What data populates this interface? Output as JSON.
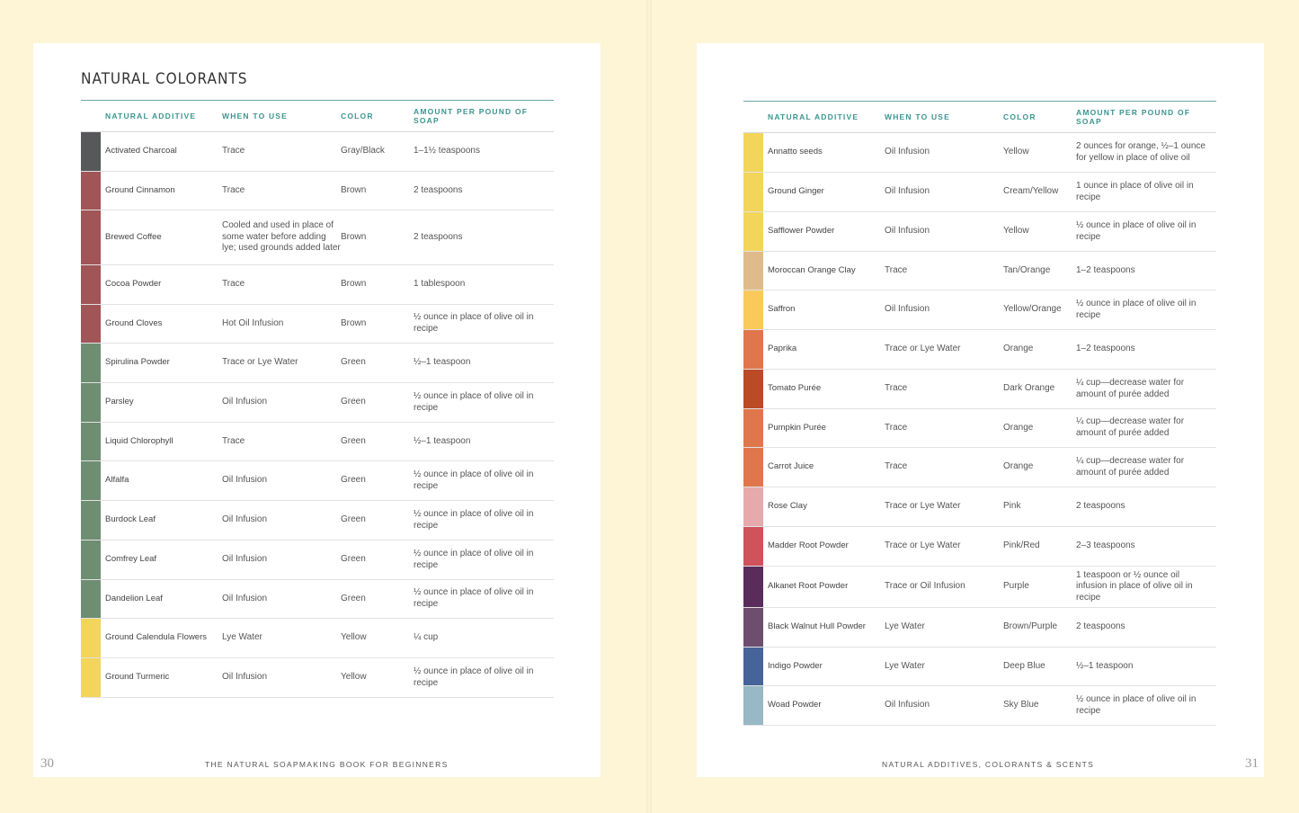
{
  "left_page": {
    "title": "NATURAL COLORANTS",
    "headers": [
      "Natural Additive",
      "When to Use",
      "Color",
      "Amount per Pound of Soap"
    ],
    "rows": [
      {
        "additive": "Activated Charcoal",
        "when": "Trace",
        "color": "Gray/Black",
        "amount": "1–1½ teaspoons",
        "swatch": "#57585a"
      },
      {
        "additive": "Ground Cinnamon",
        "when": "Trace",
        "color": "Brown",
        "amount": "2 teaspoons",
        "swatch": "#a15557"
      },
      {
        "additive": "Brewed Coffee",
        "when": "Cooled and used in place of some water before adding lye; used grounds added later",
        "color": "Brown",
        "amount": "2 teaspoons",
        "swatch": "#a15557"
      },
      {
        "additive": "Cocoa Powder",
        "when": "Trace",
        "color": "Brown",
        "amount": "1 tablespoon",
        "swatch": "#a15557"
      },
      {
        "additive": "Ground Cloves",
        "when": "Hot Oil Infusion",
        "color": "Brown",
        "amount": "½ ounce in place of olive oil in recipe",
        "swatch": "#a15557"
      },
      {
        "additive": "Spirulina Powder",
        "when": "Trace or Lye Water",
        "color": "Green",
        "amount": "½–1 teaspoon",
        "swatch": "#6e8e72"
      },
      {
        "additive": "Parsley",
        "when": "Oil Infusion",
        "color": "Green",
        "amount": "½ ounce in place of olive oil in recipe",
        "swatch": "#6e8e72"
      },
      {
        "additive": "Liquid Chlorophyll",
        "when": "Trace",
        "color": "Green",
        "amount": "½–1 teaspoon",
        "swatch": "#6e8e72"
      },
      {
        "additive": "Alfalfa",
        "when": "Oil Infusion",
        "color": "Green",
        "amount": "½ ounce in place of olive oil in recipe",
        "swatch": "#6e8e72"
      },
      {
        "additive": "Burdock Leaf",
        "when": "Oil Infusion",
        "color": "Green",
        "amount": "½ ounce in place of olive oil in recipe",
        "swatch": "#6e8e72"
      },
      {
        "additive": "Comfrey Leaf",
        "when": "Oil Infusion",
        "color": "Green",
        "amount": "½ ounce in place of olive oil in recipe",
        "swatch": "#6e8e72"
      },
      {
        "additive": "Dandelion Leaf",
        "when": "Oil Infusion",
        "color": "Green",
        "amount": "½ ounce in place of olive oil in recipe",
        "swatch": "#6e8e72"
      },
      {
        "additive": "Ground Calendula Flowers",
        "when": "Lye Water",
        "color": "Yellow",
        "amount": "¼ cup",
        "swatch": "#f2d55a"
      },
      {
        "additive": "Ground Turmeric",
        "when": "Oil Infusion",
        "color": "Yellow",
        "amount": "½ ounce in place of olive oil in recipe",
        "swatch": "#f2d55a"
      }
    ],
    "folio": "30",
    "running_head": "THE NATURAL SOAPMAKING BOOK FOR BEGINNERS"
  },
  "right_page": {
    "headers": [
      "Natural Additive",
      "When to Use",
      "Color",
      "Amount per Pound of Soap"
    ],
    "rows": [
      {
        "additive": "Annatto seeds",
        "when": "Oil Infusion",
        "color": "Yellow",
        "amount": "2 ounces for orange, ½–1 ounce for yellow in place of olive oil",
        "swatch": "#f2d55a"
      },
      {
        "additive": "Ground Ginger",
        "when": "Oil Infusion",
        "color": "Cream/Yellow",
        "amount": "1 ounce in place of olive oil in recipe",
        "swatch": "#f2d55a"
      },
      {
        "additive": "Safflower Powder",
        "when": "Oil Infusion",
        "color": "Yellow",
        "amount": "½ ounce in place of olive oil in recipe",
        "swatch": "#f2d55a"
      },
      {
        "additive": "Moroccan Orange Clay",
        "when": "Trace",
        "color": "Tan/Orange",
        "amount": "1–2 teaspoons",
        "swatch": "#e0bb8a"
      },
      {
        "additive": "Saffron",
        "when": "Oil Infusion",
        "color": "Yellow/Orange",
        "amount": "½ ounce in place of olive oil in recipe",
        "swatch": "#fbc85a"
      },
      {
        "additive": "Paprika",
        "when": "Trace or Lye Water",
        "color": "Orange",
        "amount": "1–2 teaspoons",
        "swatch": "#e0774c"
      },
      {
        "additive": "Tomato Purée",
        "when": "Trace",
        "color": "Dark Orange",
        "amount": "¼ cup—decrease water for amount of purée added",
        "swatch": "#bb4a26"
      },
      {
        "additive": "Pumpkin Purée",
        "when": "Trace",
        "color": "Orange",
        "amount": "¼ cup—decrease water for amount of purée added",
        "swatch": "#e0774c"
      },
      {
        "additive": "Carrot Juice",
        "when": "Trace",
        "color": "Orange",
        "amount": "¼ cup—decrease water for amount of purée added",
        "swatch": "#e0774c"
      },
      {
        "additive": "Rose Clay",
        "when": "Trace or Lye Water",
        "color": "Pink",
        "amount": "2 teaspoons",
        "swatch": "#e6aaac"
      },
      {
        "additive": "Madder Root Powder",
        "when": "Trace or Lye Water",
        "color": "Pink/Red",
        "amount": "2–3 teaspoons",
        "swatch": "#d0525b"
      },
      {
        "additive": "Alkanet Root Powder",
        "when": "Trace or Oil Infusion",
        "color": "Purple",
        "amount": "1 teaspoon or ½ ounce oil infusion in place of olive oil in recipe",
        "swatch": "#5a2c5c"
      },
      {
        "additive": "Black Walnut Hull Powder",
        "when": "Lye Water",
        "color": "Brown/Purple",
        "amount": "2 teaspoons",
        "swatch": "#6d4f6d"
      },
      {
        "additive": "Indigo Powder",
        "when": "Lye Water",
        "color": "Deep Blue",
        "amount": "½–1 teaspoon",
        "swatch": "#46649a"
      },
      {
        "additive": "Woad Powder",
        "when": "Oil Infusion",
        "color": "Sky Blue",
        "amount": "½ ounce in place of olive oil in recipe",
        "swatch": "#97b8c4"
      }
    ],
    "folio": "31",
    "running_head": "NATURAL ADDITIVES, COLORANTS & SCENTS"
  }
}
